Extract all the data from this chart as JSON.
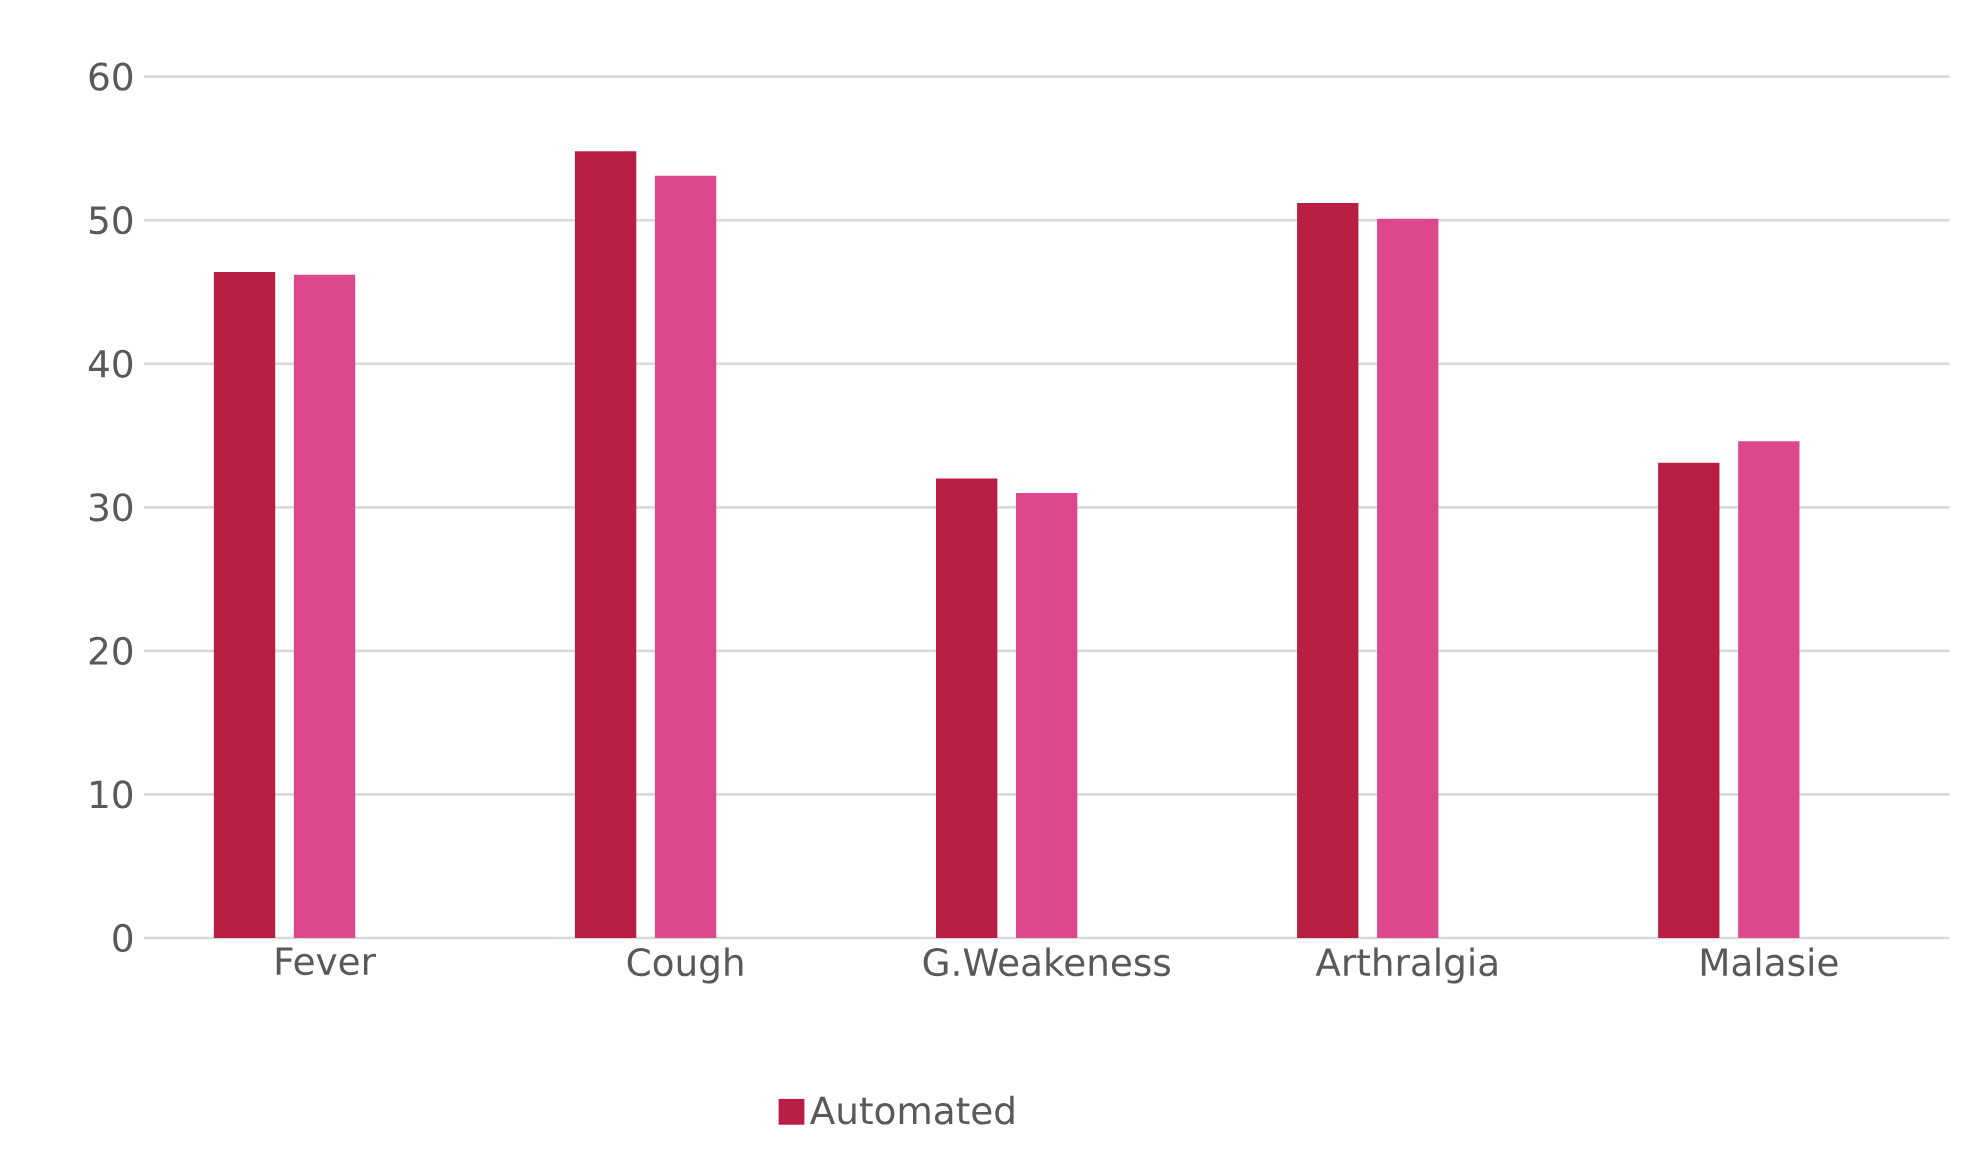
{
  "chart_data": {
    "type": "bar",
    "categories": [
      "Fever",
      "Cough",
      "G.Weakeness",
      "Arthralgia",
      "Malasie"
    ],
    "series": [
      {
        "name": "Automated",
        "color": "#b91f42",
        "values": [
          46.4,
          54.8,
          32.0,
          51.2,
          33.1
        ]
      },
      {
        "color": "#dd488c",
        "values": [
          46.2,
          53.1,
          31.0,
          50.1,
          34.6
        ]
      }
    ],
    "ylim": [
      0,
      60
    ],
    "yticks": [
      0,
      10,
      20,
      30,
      40,
      50,
      60
    ],
    "grid": "y",
    "legend": "bottom"
  }
}
